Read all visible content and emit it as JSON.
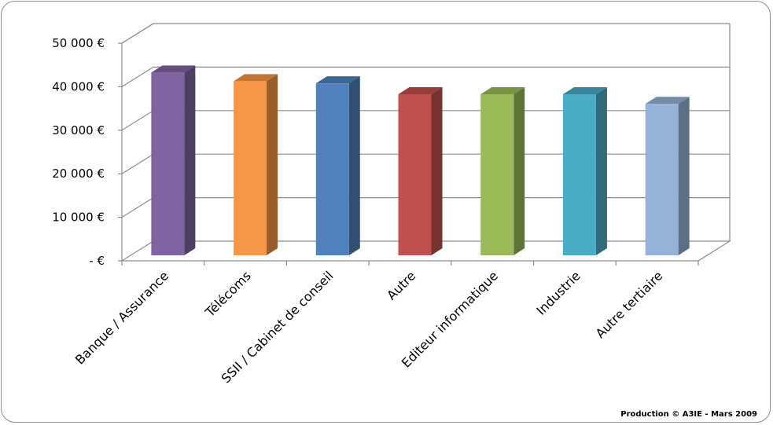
{
  "chart_data": {
    "type": "bar",
    "three_d": true,
    "categories": [
      "Banque / Assurance",
      "Télécoms",
      "SSII / Cabinet de conseil",
      "Autre",
      "Editeur informatique",
      "Industrie",
      "Autre tertiaire"
    ],
    "values": [
      42000,
      40000,
      39500,
      37000,
      37000,
      37000,
      34800
    ],
    "colors": [
      "#8064a2",
      "#f79646",
      "#4f81bd",
      "#c0504d",
      "#9bbb59",
      "#4bacc6",
      "#95b3d7"
    ],
    "ylim": [
      0,
      50000
    ],
    "yticks": [
      0,
      10000,
      20000,
      30000,
      40000,
      50000
    ],
    "ytick_labels": [
      "-  €",
      "10 000 €",
      "20 000 €",
      "30 000 €",
      "40 000 €",
      "50 000 €"
    ],
    "grid": true,
    "legend": "none",
    "title": "",
    "xlabel": "",
    "ylabel": ""
  },
  "footer": {
    "credit": "Production © A3IE - Mars 2009"
  }
}
